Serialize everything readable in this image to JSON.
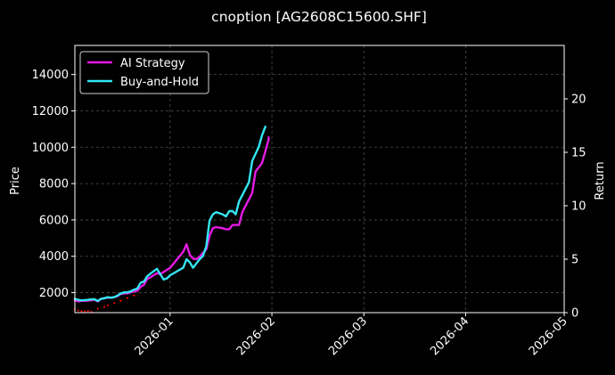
{
  "chart_data": {
    "type": "line",
    "title": "cnoption [AG2608C15600.SHF]",
    "ylabel": "Price",
    "y2label": "Return",
    "ylim": [
      900,
      15600
    ],
    "y2lim": [
      0,
      25
    ],
    "yticks": [
      2000,
      4000,
      6000,
      8000,
      10000,
      12000,
      14000
    ],
    "y2ticks": [
      0,
      5,
      10,
      15,
      20
    ],
    "xlim": [
      "2025-12-03",
      "2026-05-01"
    ],
    "xticks": [
      {
        "date": "2026-01-01",
        "label": "2026-01"
      },
      {
        "date": "2026-02-01",
        "label": "2026-02"
      },
      {
        "date": "2026-03-01",
        "label": "2026-03"
      },
      {
        "date": "2026-04-01",
        "label": "2026-04"
      },
      {
        "date": "2026-05-01",
        "label": "2026-05"
      }
    ],
    "grid": true,
    "legend": "top-left",
    "series": [
      {
        "name": "AI Strategy",
        "axis": "right",
        "color": "#e619e6",
        "points": [
          [
            "2025-12-03",
            1.15
          ],
          [
            "2025-12-04",
            1.05
          ],
          [
            "2025-12-05",
            1.1
          ],
          [
            "2025-12-07",
            1.12
          ],
          [
            "2025-12-08",
            1.15
          ],
          [
            "2025-12-09",
            1.2
          ],
          [
            "2025-12-10",
            1.05
          ],
          [
            "2025-12-11",
            1.3
          ],
          [
            "2025-12-12",
            1.35
          ],
          [
            "2025-12-13",
            1.4
          ],
          [
            "2025-12-14",
            1.4
          ],
          [
            "2025-12-15",
            1.45
          ],
          [
            "2025-12-16",
            1.55
          ],
          [
            "2025-12-17",
            1.75
          ],
          [
            "2025-12-18",
            1.8
          ],
          [
            "2025-12-19",
            1.8
          ],
          [
            "2025-12-20",
            1.9
          ],
          [
            "2025-12-21",
            2.0
          ],
          [
            "2025-12-22",
            2.05
          ],
          [
            "2025-12-23",
            2.4
          ],
          [
            "2025-12-24",
            2.6
          ],
          [
            "2025-12-25",
            3.15
          ],
          [
            "2025-12-26",
            3.3
          ],
          [
            "2025-12-28",
            3.7
          ],
          [
            "2025-12-29",
            3.6
          ],
          [
            "2025-12-31",
            4.0
          ],
          [
            "2026-01-01",
            4.2
          ],
          [
            "2026-01-05",
            5.7
          ],
          [
            "2026-01-06",
            6.4
          ],
          [
            "2026-01-07",
            5.4
          ],
          [
            "2026-01-08",
            5.05
          ],
          [
            "2026-01-09",
            5.0
          ],
          [
            "2026-01-10",
            5.25
          ],
          [
            "2026-01-11",
            5.6
          ],
          [
            "2026-01-12",
            5.9
          ],
          [
            "2026-01-13",
            7.2
          ],
          [
            "2026-01-14",
            7.9
          ],
          [
            "2026-01-15",
            8.0
          ],
          [
            "2026-01-17",
            7.9
          ],
          [
            "2026-01-18",
            7.8
          ],
          [
            "2026-01-19",
            7.8
          ],
          [
            "2026-01-20",
            8.2
          ],
          [
            "2026-01-21",
            8.2
          ],
          [
            "2026-01-22",
            8.2
          ],
          [
            "2026-01-23",
            9.4
          ],
          [
            "2026-01-26",
            11.2
          ],
          [
            "2026-01-27",
            13.2
          ],
          [
            "2026-01-29",
            14.0
          ],
          [
            "2026-01-30",
            15.1
          ],
          [
            "2026-01-31",
            16.2
          ],
          [
            "2026-01-31",
            16.4
          ]
        ]
      },
      {
        "name": "Buy-and-Hold",
        "axis": "right",
        "color": "#33e6f2",
        "points": [
          [
            "2025-12-03",
            1.3
          ],
          [
            "2025-12-04",
            1.2
          ],
          [
            "2025-12-05",
            1.15
          ],
          [
            "2025-12-07",
            1.2
          ],
          [
            "2025-12-08",
            1.25
          ],
          [
            "2025-12-09",
            1.25
          ],
          [
            "2025-12-10",
            1.1
          ],
          [
            "2025-12-11",
            1.3
          ],
          [
            "2025-12-12",
            1.35
          ],
          [
            "2025-12-13",
            1.45
          ],
          [
            "2025-12-14",
            1.4
          ],
          [
            "2025-12-15",
            1.45
          ],
          [
            "2025-12-16",
            1.6
          ],
          [
            "2025-12-17",
            1.8
          ],
          [
            "2025-12-18",
            1.9
          ],
          [
            "2025-12-19",
            1.9
          ],
          [
            "2025-12-20",
            2.0
          ],
          [
            "2025-12-21",
            2.15
          ],
          [
            "2025-12-22",
            2.25
          ],
          [
            "2025-12-23",
            2.8
          ],
          [
            "2025-12-24",
            2.9
          ],
          [
            "2025-12-25",
            3.4
          ],
          [
            "2025-12-26",
            3.65
          ],
          [
            "2025-12-28",
            4.1
          ],
          [
            "2025-12-29",
            3.6
          ],
          [
            "2025-12-30",
            3.1
          ],
          [
            "2025-12-31",
            3.2
          ],
          [
            "2026-01-01",
            3.5
          ],
          [
            "2026-01-05",
            4.2
          ],
          [
            "2026-01-06",
            5.0
          ],
          [
            "2026-01-07",
            4.7
          ],
          [
            "2026-01-08",
            4.2
          ],
          [
            "2026-01-09",
            4.6
          ],
          [
            "2026-01-10",
            5.0
          ],
          [
            "2026-01-11",
            5.3
          ],
          [
            "2026-01-12",
            6.2
          ],
          [
            "2026-01-13",
            8.6
          ],
          [
            "2026-01-14",
            9.2
          ],
          [
            "2026-01-15",
            9.4
          ],
          [
            "2026-01-17",
            9.2
          ],
          [
            "2026-01-18",
            9.0
          ],
          [
            "2026-01-19",
            9.5
          ],
          [
            "2026-01-20",
            9.5
          ],
          [
            "2026-01-21",
            9.2
          ],
          [
            "2026-01-22",
            10.4
          ],
          [
            "2026-01-25",
            12.2
          ],
          [
            "2026-01-26",
            14.2
          ],
          [
            "2026-01-28",
            15.5
          ],
          [
            "2026-01-29",
            16.6
          ],
          [
            "2026-01-30",
            17.4
          ]
        ]
      }
    ],
    "price_scatter": {
      "axis": "left",
      "color": "#ff0000",
      "points": [
        [
          "2025-12-03",
          1100
        ],
        [
          "2025-12-04",
          1020
        ],
        [
          "2025-12-05",
          980
        ],
        [
          "2025-12-06",
          960
        ],
        [
          "2025-12-07",
          1000
        ],
        [
          "2025-12-08",
          940
        ],
        [
          "2025-12-10",
          1120
        ],
        [
          "2025-12-12",
          1220
        ],
        [
          "2025-12-13",
          1300
        ],
        [
          "2025-12-15",
          1420
        ],
        [
          "2025-12-17",
          1550
        ],
        [
          "2025-12-19",
          1700
        ],
        [
          "2025-12-21",
          1850
        ]
      ]
    }
  }
}
